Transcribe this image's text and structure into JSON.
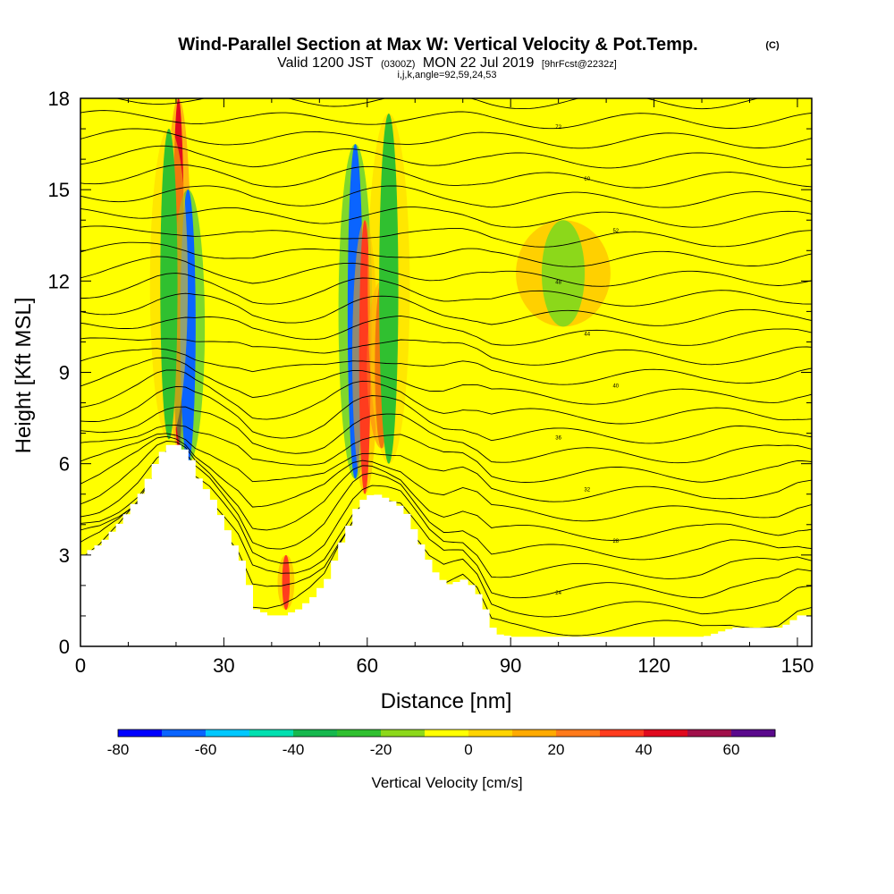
{
  "header": {
    "title": "Wind-Parallel Section at Max W: Vertical Velocity & Pot.Temp.",
    "copyright": "(C)",
    "valid_prefix": "Valid 1200 JST",
    "valid_utc": "(0300Z)",
    "valid_date": "MON 22 Jul 2019",
    "forecast": "[9hrFcst@2232z]",
    "indices": "i,j,k,angle=92,59,24,53"
  },
  "colorbar": {
    "label": "Vertical Velocity [cm/s]",
    "tick_labels": [
      "-80",
      "-60",
      "-40",
      "-20",
      "0",
      "20",
      "40",
      "60"
    ],
    "colors": [
      "#0000ff",
      "#0a64ff",
      "#00c8ff",
      "#00e0b0",
      "#16b84e",
      "#30c030",
      "#8cd81a",
      "#ffff00",
      "#ffd400",
      "#ffaa00",
      "#ff7a1a",
      "#ff3c1e",
      "#e00a1e",
      "#a0104a",
      "#5a0a8c"
    ]
  },
  "chart_data": {
    "type": "heatmap",
    "title": "Wind-Parallel Section at Max W: Vertical Velocity & Pot.Temp.",
    "xlabel": "Distance [nm]",
    "ylabel": "Height [Kft MSL]",
    "xlim": [
      0,
      153
    ],
    "ylim": [
      0,
      18
    ],
    "x_ticks": [
      0,
      30,
      60,
      90,
      120,
      150
    ],
    "y_ticks": [
      0,
      3,
      6,
      9,
      12,
      15,
      18
    ],
    "colorbar_range": [
      -80,
      70
    ],
    "colorbar_step": 10,
    "terrain_profile": {
      "x": [
        0,
        4,
        8,
        12,
        16,
        18,
        20,
        22,
        24,
        27,
        30,
        33,
        36,
        39,
        42,
        45,
        48,
        51,
        54,
        57,
        59,
        61,
        64,
        67,
        70,
        73,
        76,
        80,
        83,
        86,
        90,
        100,
        110,
        120,
        130,
        136,
        140,
        146,
        150,
        153
      ],
      "height": [
        3.0,
        3.4,
        4.1,
        5.0,
        6.3,
        6.6,
        6.6,
        6.3,
        5.5,
        4.8,
        3.8,
        2.8,
        1.2,
        1.0,
        1.0,
        1.2,
        1.6,
        2.2,
        3.4,
        4.5,
        4.9,
        5.0,
        4.8,
        4.5,
        3.5,
        2.5,
        2.0,
        2.2,
        1.6,
        0.4,
        0.3,
        0.3,
        0.3,
        0.3,
        0.3,
        0.6,
        0.6,
        0.6,
        1.0,
        1.0
      ]
    },
    "velocity_features": [
      {
        "x": 20.5,
        "y0": 6.5,
        "y1": 18,
        "w": 1.2,
        "value": 40
      },
      {
        "x": 22.5,
        "y0": 6.0,
        "y1": 15,
        "w": 1.6,
        "value": -70
      },
      {
        "x": 18.5,
        "y0": 6.8,
        "y1": 17,
        "w": 1.8,
        "value": -30
      },
      {
        "x": 57.5,
        "y0": 5.5,
        "y1": 16.5,
        "w": 1.6,
        "value": -70
      },
      {
        "x": 59.5,
        "y0": 5.0,
        "y1": 14,
        "w": 1.2,
        "value": 30
      },
      {
        "x": 63.0,
        "y0": 6.5,
        "y1": 12,
        "w": 1.4,
        "value": 40
      },
      {
        "x": 64.5,
        "y0": 6.0,
        "y1": 17.5,
        "w": 2.0,
        "value": -30
      },
      {
        "x": 101,
        "y0": 10.5,
        "y1": 14,
        "w": 4.5,
        "value": -20
      },
      {
        "x": 43,
        "y0": 1.2,
        "y1": 3.0,
        "w": 0.8,
        "value": 30
      }
    ],
    "pot_temp_contour_labels": [
      "72",
      "60",
      "52",
      "48",
      "44",
      "40",
      "36",
      "32",
      "28",
      "24"
    ],
    "grid": false,
    "legend": "bottom"
  }
}
